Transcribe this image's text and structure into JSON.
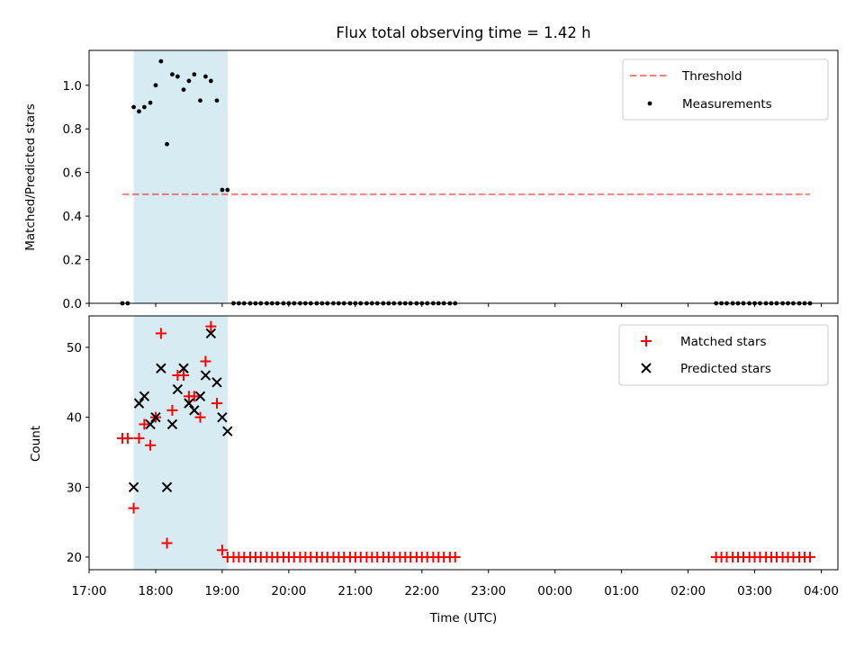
{
  "chart_data": [
    {
      "type": "scatter",
      "title": "Flux total observing time = 1.42 h",
      "xlabel": "",
      "ylabel": "Matched/Predicted stars",
      "xlim_hours": [
        17.0,
        28.25
      ],
      "ylim": [
        0.0,
        1.16
      ],
      "yticks": [
        "0.0",
        "0.2",
        "0.4",
        "0.6",
        "0.8",
        "1.0"
      ],
      "shaded_span_hours": [
        17.67,
        19.08
      ],
      "shaded_color": "#add8e6",
      "legend": {
        "position": "top-right",
        "entries": [
          "Threshold",
          "Measurements"
        ]
      },
      "threshold": {
        "label": "Threshold",
        "value": 0.5,
        "x_range_hours": [
          17.5,
          27.83
        ],
        "color": "#ff0000",
        "opacity": 0.5
      },
      "series": [
        {
          "name": "Measurements",
          "marker": "dot",
          "color": "#000000",
          "x_hours": [
            17.5,
            17.58,
            17.67,
            17.75,
            17.83,
            17.92,
            18.0,
            18.08,
            18.17,
            18.25,
            18.33,
            18.42,
            18.5,
            18.58,
            18.67,
            18.75,
            18.83,
            18.92,
            19.0,
            19.08,
            19.17,
            19.25,
            19.33,
            19.42,
            19.5,
            19.58,
            19.67,
            19.75,
            19.83,
            19.92,
            20.0,
            20.08,
            20.17,
            20.25,
            20.33,
            20.42,
            20.5,
            20.58,
            20.67,
            20.75,
            20.83,
            20.92,
            21.0,
            21.08,
            21.17,
            21.25,
            21.33,
            21.42,
            21.5,
            21.58,
            21.67,
            21.75,
            21.83,
            21.92,
            22.0,
            22.08,
            22.17,
            22.25,
            22.33,
            22.42,
            22.5,
            26.42,
            26.5,
            26.58,
            26.67,
            26.75,
            26.83,
            26.92,
            27.0,
            27.08,
            27.17,
            27.25,
            27.33,
            27.42,
            27.5,
            27.58,
            27.67,
            27.75,
            27.83
          ],
          "y": [
            0.0,
            0.0,
            0.9,
            0.88,
            0.9,
            0.92,
            1.0,
            1.11,
            0.73,
            1.05,
            1.04,
            0.98,
            1.02,
            1.05,
            0.93,
            1.04,
            1.02,
            0.93,
            0.52,
            0.52,
            0.0,
            0.0,
            0.0,
            0.0,
            0.0,
            0.0,
            0.0,
            0.0,
            0.0,
            0.0,
            0.0,
            0.0,
            0.0,
            0.0,
            0.0,
            0.0,
            0.0,
            0.0,
            0.0,
            0.0,
            0.0,
            0.0,
            0.0,
            0.0,
            0.0,
            0.0,
            0.0,
            0.0,
            0.0,
            0.0,
            0.0,
            0.0,
            0.0,
            0.0,
            0.0,
            0.0,
            0.0,
            0.0,
            0.0,
            0.0,
            0.0,
            0.0,
            0.0,
            0.0,
            0.0,
            0.0,
            0.0,
            0.0,
            0.0,
            0.0,
            0.0,
            0.0,
            0.0,
            0.0,
            0.0,
            0.0,
            0.0,
            0.0,
            0.0
          ]
        }
      ]
    },
    {
      "type": "scatter",
      "title": "",
      "xlabel": "Time (UTC)",
      "ylabel": "Count",
      "xlim_hours": [
        17.0,
        28.25
      ],
      "ylim": [
        18.2,
        54.5
      ],
      "yticks": [
        "20",
        "30",
        "40",
        "50"
      ],
      "xtick_labels": [
        "17:00",
        "18:00",
        "19:00",
        "20:00",
        "21:00",
        "22:00",
        "23:00",
        "00:00",
        "01:00",
        "02:00",
        "03:00",
        "04:00"
      ],
      "shaded_span_hours": [
        17.67,
        19.08
      ],
      "shaded_color": "#add8e6",
      "legend": {
        "position": "top-right",
        "entries": [
          "Matched stars",
          "Predicted stars"
        ]
      },
      "series": [
        {
          "name": "Matched stars",
          "marker": "plus",
          "color": "#ff0000",
          "x_hours": [
            17.5,
            17.58,
            17.67,
            17.75,
            17.83,
            17.92,
            18.0,
            18.08,
            18.17,
            18.25,
            18.33,
            18.42,
            18.5,
            18.58,
            18.67,
            18.75,
            18.83,
            18.92,
            19.0,
            19.08,
            19.17,
            19.25,
            19.33,
            19.42,
            19.5,
            19.58,
            19.67,
            19.75,
            19.83,
            19.92,
            20.0,
            20.08,
            20.17,
            20.25,
            20.33,
            20.42,
            20.5,
            20.58,
            20.67,
            20.75,
            20.83,
            20.92,
            21.0,
            21.08,
            21.17,
            21.25,
            21.33,
            21.42,
            21.5,
            21.58,
            21.67,
            21.75,
            21.83,
            21.92,
            22.0,
            22.08,
            22.17,
            22.25,
            22.33,
            22.42,
            22.5,
            26.42,
            26.5,
            26.58,
            26.67,
            26.75,
            26.83,
            26.92,
            27.0,
            27.08,
            27.17,
            27.25,
            27.33,
            27.42,
            27.5,
            27.58,
            27.67,
            27.75,
            27.83
          ],
          "y": [
            37,
            37,
            27,
            37,
            39,
            36,
            40,
            52,
            22,
            41,
            46,
            46,
            43,
            43,
            40,
            48,
            53,
            42,
            21,
            20,
            20,
            20,
            20,
            20,
            20,
            20,
            20,
            20,
            20,
            20,
            20,
            20,
            20,
            20,
            20,
            20,
            20,
            20,
            20,
            20,
            20,
            20,
            20,
            20,
            20,
            20,
            20,
            20,
            20,
            20,
            20,
            20,
            20,
            20,
            20,
            20,
            20,
            20,
            20,
            20,
            20,
            20,
            20,
            20,
            20,
            20,
            20,
            20,
            20,
            20,
            20,
            20,
            20,
            20,
            20,
            20,
            20,
            20,
            20
          ]
        },
        {
          "name": "Predicted stars",
          "marker": "x",
          "color": "#000000",
          "x_hours": [
            17.67,
            17.75,
            17.83,
            17.92,
            18.0,
            18.08,
            18.17,
            18.25,
            18.33,
            18.42,
            18.5,
            18.58,
            18.67,
            18.75,
            18.83,
            18.92,
            19.0,
            19.08
          ],
          "y": [
            30,
            42,
            43,
            39,
            40,
            47,
            30,
            39,
            44,
            47,
            42,
            41,
            43,
            46,
            52,
            45,
            40,
            38
          ]
        }
      ]
    }
  ]
}
